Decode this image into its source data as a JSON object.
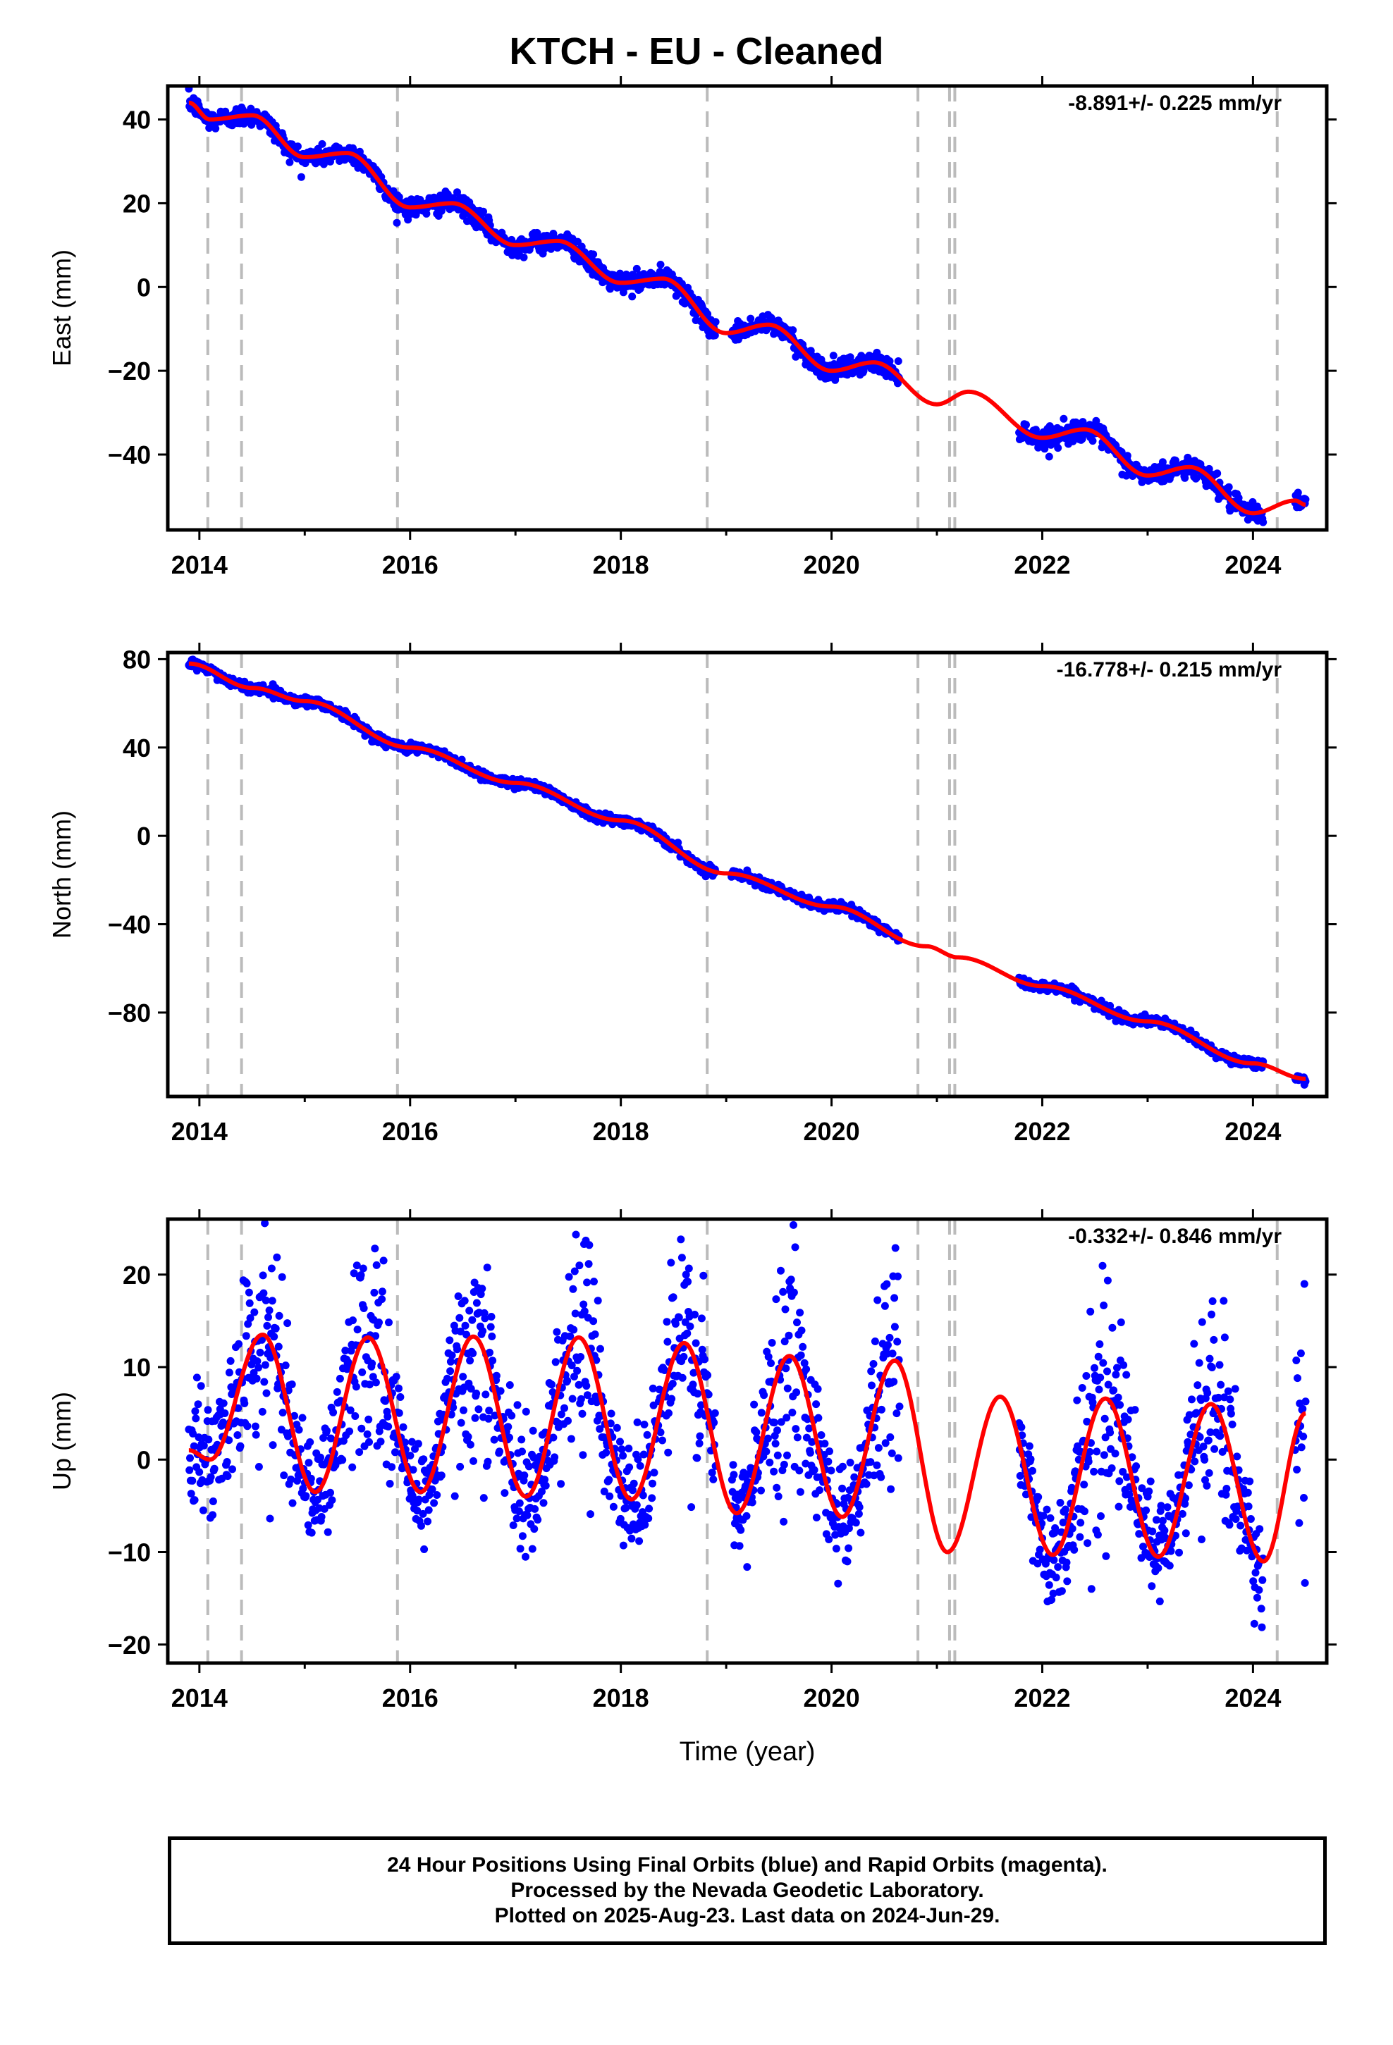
{
  "title": "KTCH  - EU - Cleaned",
  "caption": {
    "line1": "24 Hour Positions Using Final Orbits (blue) and Rapid Orbits (magenta).",
    "line2": "Processed by the Nevada Geodetic Laboratory.",
    "line3": "Plotted on 2025-Aug-23. Last data on 2024-Jun-29."
  },
  "colors": {
    "points": "#0000ff",
    "model": "#ff0000",
    "breaks": "#bbbbbb",
    "axes": "#000000"
  },
  "chart_data": [
    {
      "type": "scatter",
      "name": "East",
      "ylabel": "East (mm)",
      "xlabel": "",
      "rate": "-8.891+/- 0.225 mm/yr",
      "xlim": [
        2013.7,
        2024.7
      ],
      "ylim": [
        -58,
        48
      ],
      "xticks": [
        2014,
        2016,
        2018,
        2020,
        2022,
        2024
      ],
      "yticks": [
        -40,
        -20,
        0,
        20,
        40
      ],
      "grid": false,
      "break_years": [
        2014.08,
        2014.4,
        2015.88,
        2018.82,
        2020.82,
        2021.12,
        2021.17,
        2024.23
      ],
      "data_segments": [
        [
          2013.9,
          2018.9
        ],
        [
          2019.05,
          2020.65
        ],
        [
          2021.78,
          2024.1
        ],
        [
          2024.4,
          2024.5
        ]
      ],
      "trend": {
        "t0": 2013.9,
        "y0": 43,
        "rate": -8.891
      },
      "seasonal": {
        "amp_annual": 2.2,
        "phase_annual": 2.6,
        "amp_semiannual": 0.8,
        "phase_semiannual": 1.0
      },
      "scatter_sd": 1.2,
      "model_samples": [
        [
          2013.9,
          44
        ],
        [
          2014.1,
          40
        ],
        [
          2014.5,
          41
        ],
        [
          2015.0,
          31
        ],
        [
          2015.4,
          32
        ],
        [
          2016.0,
          19
        ],
        [
          2016.4,
          20
        ],
        [
          2017.0,
          10
        ],
        [
          2017.4,
          11
        ],
        [
          2018.0,
          1
        ],
        [
          2018.4,
          2
        ],
        [
          2019.0,
          -11
        ],
        [
          2019.4,
          -9
        ],
        [
          2020.0,
          -20
        ],
        [
          2020.4,
          -18
        ],
        [
          2021.0,
          -28
        ],
        [
          2021.3,
          -25
        ],
        [
          2022.0,
          -36
        ],
        [
          2022.4,
          -34
        ],
        [
          2023.0,
          -45
        ],
        [
          2023.4,
          -43
        ],
        [
          2024.0,
          -54
        ],
        [
          2024.4,
          -51
        ],
        [
          2024.5,
          -52
        ]
      ]
    },
    {
      "type": "scatter",
      "name": "North",
      "ylabel": "North (mm)",
      "xlabel": "",
      "rate": "-16.778+/- 0.215 mm/yr",
      "xlim": [
        2013.7,
        2024.7
      ],
      "ylim": [
        -118,
        83
      ],
      "xticks": [
        2014,
        2016,
        2018,
        2020,
        2022,
        2024
      ],
      "yticks": [
        -80,
        -40,
        0,
        40,
        80
      ],
      "grid": false,
      "break_years": [
        2014.08,
        2014.4,
        2015.88,
        2018.82,
        2020.82,
        2021.12,
        2021.17,
        2024.23
      ],
      "data_segments": [
        [
          2013.9,
          2018.9
        ],
        [
          2019.05,
          2020.65
        ],
        [
          2021.78,
          2024.1
        ],
        [
          2024.4,
          2024.5
        ]
      ],
      "trend": {
        "t0": 2013.9,
        "y0": 78,
        "rate": -16.778
      },
      "seasonal": {
        "amp_annual": 0.9,
        "phase_annual": 1.2,
        "amp_semiannual": 0.3,
        "phase_semiannual": 0.5
      },
      "scatter_sd": 1.1,
      "model_samples": [
        [
          2013.9,
          78
        ],
        [
          2014.5,
          67
        ],
        [
          2015.0,
          61
        ],
        [
          2016.0,
          40
        ],
        [
          2017.0,
          24
        ],
        [
          2018.0,
          7
        ],
        [
          2019.0,
          -17
        ],
        [
          2020.0,
          -32
        ],
        [
          2020.9,
          -50
        ],
        [
          2021.2,
          -55
        ],
        [
          2022.0,
          -68
        ],
        [
          2023.0,
          -84
        ],
        [
          2024.0,
          -103
        ],
        [
          2024.5,
          -110
        ]
      ]
    },
    {
      "type": "scatter",
      "name": "Up",
      "ylabel": "Up (mm)",
      "xlabel": "Time (year)",
      "rate": "-0.332+/- 0.846 mm/yr",
      "xlim": [
        2013.7,
        2024.7
      ],
      "ylim": [
        -22,
        26
      ],
      "xticks": [
        2014,
        2016,
        2018,
        2020,
        2022,
        2024
      ],
      "yticks": [
        -20,
        -10,
        0,
        10,
        20
      ],
      "grid": false,
      "break_years": [
        2014.08,
        2014.4,
        2015.88,
        2018.82,
        2020.82,
        2021.12,
        2021.17,
        2024.23
      ],
      "data_segments": [
        [
          2013.9,
          2018.9
        ],
        [
          2019.05,
          2020.65
        ],
        [
          2021.78,
          2024.1
        ],
        [
          2024.4,
          2024.5
        ]
      ],
      "seasonal_peaks": [
        [
          2014.6,
          13.5
        ],
        [
          2015.6,
          13.2
        ],
        [
          2016.6,
          13.3
        ],
        [
          2017.6,
          13.2
        ],
        [
          2018.6,
          12.6
        ],
        [
          2019.6,
          11.2
        ],
        [
          2020.6,
          10.7
        ],
        [
          2021.6,
          6.8
        ],
        [
          2022.6,
          6.6
        ],
        [
          2023.6,
          6.0
        ]
      ],
      "seasonal_troughs": [
        [
          2015.1,
          -3.5
        ],
        [
          2016.1,
          -3.5
        ],
        [
          2017.1,
          -4.0
        ],
        [
          2018.1,
          -4.3
        ],
        [
          2019.1,
          -5.8
        ],
        [
          2020.1,
          -6.2
        ],
        [
          2021.1,
          -10.0
        ],
        [
          2022.1,
          -10.3
        ],
        [
          2023.1,
          -10.5
        ],
        [
          2024.1,
          -11.0
        ]
      ],
      "scatter_sd": 3.2,
      "peak_spread": 3.5,
      "model_samples": [
        [
          2013.9,
          1
        ],
        [
          2014.1,
          0
        ],
        [
          2014.6,
          13.5
        ],
        [
          2015.1,
          -3.5
        ],
        [
          2015.6,
          13.2
        ],
        [
          2016.1,
          -3.5
        ],
        [
          2016.6,
          13.3
        ],
        [
          2017.1,
          -4.0
        ],
        [
          2017.6,
          13.2
        ],
        [
          2018.1,
          -4.3
        ],
        [
          2018.6,
          12.6
        ],
        [
          2019.1,
          -5.8
        ],
        [
          2019.6,
          11.2
        ],
        [
          2020.1,
          -6.2
        ],
        [
          2020.6,
          10.7
        ],
        [
          2021.1,
          -10.0
        ],
        [
          2021.6,
          6.8
        ],
        [
          2022.1,
          -10.3
        ],
        [
          2022.6,
          6.6
        ],
        [
          2023.1,
          -10.5
        ],
        [
          2023.6,
          6.0
        ],
        [
          2024.1,
          -11.0
        ],
        [
          2024.5,
          5
        ]
      ]
    }
  ]
}
